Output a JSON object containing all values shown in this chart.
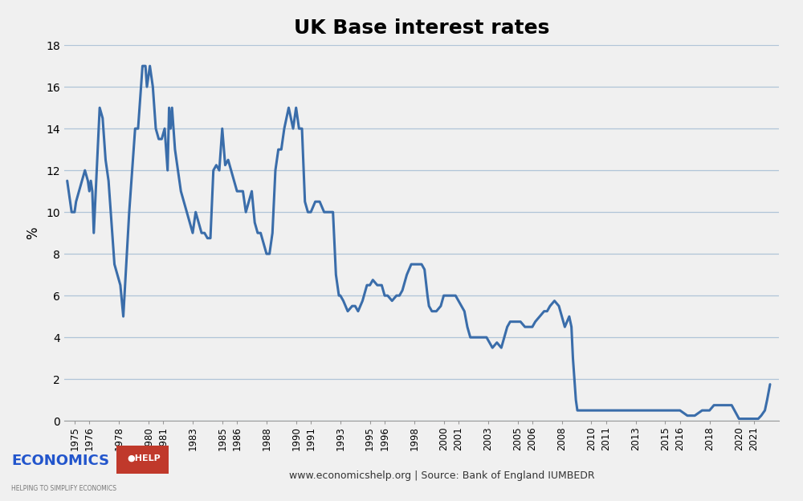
{
  "title": "UK Base interest rates",
  "ylabel": "%",
  "footer_text": "www.economicshelp.org | Source: Bank of England IUMBEDR",
  "line_color": "#3A6DAA",
  "line_width": 2.2,
  "background_color": "#f0f0f0",
  "plot_bg_color": "#f0f0f0",
  "grid_color": "#b0c4d8",
  "ylim": [
    0,
    18
  ],
  "yticks": [
    0,
    2,
    4,
    6,
    8,
    10,
    12,
    14,
    16,
    18
  ],
  "xlim": [
    1974.3,
    2022.7
  ],
  "xtick_positions": [
    1975,
    1976,
    1978,
    1980,
    1981,
    1983,
    1985,
    1986,
    1988,
    1990,
    1991,
    1993,
    1995,
    1996,
    1998,
    2000,
    2001,
    2003,
    2005,
    2006,
    2008,
    2010,
    2011,
    2013,
    2015,
    2016,
    2018,
    2020,
    2021
  ],
  "xtick_labels": [
    "1975",
    "1976",
    "1978",
    "1980",
    "1981",
    "1983",
    "1985",
    "1986",
    "1988",
    "1990",
    "1991",
    "1993",
    "1995",
    "1996",
    "1998",
    "2000",
    "2001",
    "2003",
    "2005",
    "2006",
    "2008",
    "2010",
    "2011",
    "2013",
    "2015",
    "2016",
    "2018",
    "2020",
    "2021"
  ],
  "data": [
    [
      1974.5,
      11.5
    ],
    [
      1974.8,
      10.0
    ],
    [
      1975.0,
      10.0
    ],
    [
      1975.1,
      10.5
    ],
    [
      1975.3,
      11.0
    ],
    [
      1975.5,
      11.5
    ],
    [
      1975.7,
      12.0
    ],
    [
      1975.9,
      11.5
    ],
    [
      1976.0,
      11.0
    ],
    [
      1976.1,
      11.5
    ],
    [
      1976.2,
      11.0
    ],
    [
      1976.3,
      9.0
    ],
    [
      1976.5,
      12.0
    ],
    [
      1976.7,
      15.0
    ],
    [
      1976.9,
      14.5
    ],
    [
      1977.1,
      12.5
    ],
    [
      1977.3,
      11.5
    ],
    [
      1977.5,
      9.5
    ],
    [
      1977.7,
      7.5
    ],
    [
      1977.9,
      7.0
    ],
    [
      1978.1,
      6.5
    ],
    [
      1978.3,
      5.0
    ],
    [
      1978.5,
      7.5
    ],
    [
      1978.7,
      10.0
    ],
    [
      1978.9,
      12.0
    ],
    [
      1979.1,
      14.0
    ],
    [
      1979.3,
      14.0
    ],
    [
      1979.6,
      17.0
    ],
    [
      1979.8,
      17.0
    ],
    [
      1979.9,
      16.0
    ],
    [
      1980.0,
      16.5
    ],
    [
      1980.1,
      17.0
    ],
    [
      1980.3,
      16.0
    ],
    [
      1980.5,
      14.0
    ],
    [
      1980.7,
      13.5
    ],
    [
      1980.9,
      13.5
    ],
    [
      1981.1,
      14.0
    ],
    [
      1981.3,
      12.0
    ],
    [
      1981.4,
      15.0
    ],
    [
      1981.5,
      14.0
    ],
    [
      1981.6,
      15.0
    ],
    [
      1981.8,
      13.0
    ],
    [
      1982.0,
      12.0
    ],
    [
      1982.2,
      11.0
    ],
    [
      1982.4,
      10.5
    ],
    [
      1982.6,
      10.0
    ],
    [
      1982.8,
      9.5
    ],
    [
      1983.0,
      9.0
    ],
    [
      1983.2,
      10.0
    ],
    [
      1983.4,
      9.5
    ],
    [
      1983.6,
      9.0
    ],
    [
      1983.8,
      9.0
    ],
    [
      1984.0,
      8.75
    ],
    [
      1984.2,
      8.75
    ],
    [
      1984.4,
      12.0
    ],
    [
      1984.6,
      12.25
    ],
    [
      1984.8,
      12.0
    ],
    [
      1985.0,
      14.0
    ],
    [
      1985.2,
      12.25
    ],
    [
      1985.4,
      12.5
    ],
    [
      1985.6,
      12.0
    ],
    [
      1985.8,
      11.5
    ],
    [
      1986.0,
      11.0
    ],
    [
      1986.2,
      11.0
    ],
    [
      1986.4,
      11.0
    ],
    [
      1986.6,
      10.0
    ],
    [
      1986.8,
      10.5
    ],
    [
      1987.0,
      11.0
    ],
    [
      1987.2,
      9.5
    ],
    [
      1987.4,
      9.0
    ],
    [
      1987.6,
      9.0
    ],
    [
      1987.8,
      8.5
    ],
    [
      1988.0,
      8.0
    ],
    [
      1988.2,
      8.0
    ],
    [
      1988.4,
      9.0
    ],
    [
      1988.6,
      12.0
    ],
    [
      1988.8,
      13.0
    ],
    [
      1989.0,
      13.0
    ],
    [
      1989.2,
      14.0
    ],
    [
      1989.5,
      15.0
    ],
    [
      1989.8,
      14.0
    ],
    [
      1990.0,
      15.0
    ],
    [
      1990.2,
      14.0
    ],
    [
      1990.4,
      14.0
    ],
    [
      1990.6,
      10.5
    ],
    [
      1990.8,
      10.0
    ],
    [
      1991.0,
      10.0
    ],
    [
      1991.3,
      10.5
    ],
    [
      1991.6,
      10.5
    ],
    [
      1991.9,
      10.0
    ],
    [
      1992.1,
      10.0
    ],
    [
      1992.3,
      10.0
    ],
    [
      1992.5,
      10.0
    ],
    [
      1992.7,
      7.0
    ],
    [
      1992.9,
      6.0
    ],
    [
      1993.0,
      6.0
    ],
    [
      1993.2,
      5.75
    ],
    [
      1993.5,
      5.25
    ],
    [
      1993.8,
      5.5
    ],
    [
      1994.0,
      5.5
    ],
    [
      1994.2,
      5.25
    ],
    [
      1994.5,
      5.75
    ],
    [
      1994.8,
      6.5
    ],
    [
      1995.0,
      6.5
    ],
    [
      1995.2,
      6.75
    ],
    [
      1995.5,
      6.5
    ],
    [
      1995.8,
      6.5
    ],
    [
      1996.0,
      6.0
    ],
    [
      1996.2,
      6.0
    ],
    [
      1996.5,
      5.75
    ],
    [
      1996.8,
      6.0
    ],
    [
      1997.0,
      6.0
    ],
    [
      1997.2,
      6.25
    ],
    [
      1997.5,
      7.0
    ],
    [
      1997.8,
      7.5
    ],
    [
      1998.0,
      7.5
    ],
    [
      1998.2,
      7.5
    ],
    [
      1998.5,
      7.5
    ],
    [
      1998.7,
      7.25
    ],
    [
      1998.9,
      6.0
    ],
    [
      1999.0,
      5.5
    ],
    [
      1999.2,
      5.25
    ],
    [
      1999.5,
      5.25
    ],
    [
      1999.8,
      5.5
    ],
    [
      2000.0,
      6.0
    ],
    [
      2000.2,
      6.0
    ],
    [
      2000.5,
      6.0
    ],
    [
      2000.8,
      6.0
    ],
    [
      2001.0,
      5.75
    ],
    [
      2001.2,
      5.5
    ],
    [
      2001.4,
      5.25
    ],
    [
      2001.6,
      4.5
    ],
    [
      2001.8,
      4.0
    ],
    [
      2002.0,
      4.0
    ],
    [
      2002.3,
      4.0
    ],
    [
      2002.6,
      4.0
    ],
    [
      2002.9,
      4.0
    ],
    [
      2003.1,
      3.75
    ],
    [
      2003.3,
      3.5
    ],
    [
      2003.6,
      3.75
    ],
    [
      2003.9,
      3.5
    ],
    [
      2004.1,
      4.0
    ],
    [
      2004.3,
      4.5
    ],
    [
      2004.5,
      4.75
    ],
    [
      2004.8,
      4.75
    ],
    [
      2005.0,
      4.75
    ],
    [
      2005.2,
      4.75
    ],
    [
      2005.5,
      4.5
    ],
    [
      2005.8,
      4.5
    ],
    [
      2006.0,
      4.5
    ],
    [
      2006.2,
      4.75
    ],
    [
      2006.5,
      5.0
    ],
    [
      2006.8,
      5.25
    ],
    [
      2007.0,
      5.25
    ],
    [
      2007.2,
      5.5
    ],
    [
      2007.5,
      5.75
    ],
    [
      2007.8,
      5.5
    ],
    [
      2008.0,
      5.0
    ],
    [
      2008.2,
      4.5
    ],
    [
      2008.5,
      5.0
    ],
    [
      2008.65,
      4.5
    ],
    [
      2008.75,
      3.0
    ],
    [
      2008.85,
      2.0
    ],
    [
      2008.95,
      1.0
    ],
    [
      2009.05,
      0.5
    ],
    [
      2009.3,
      0.5
    ],
    [
      2009.6,
      0.5
    ],
    [
      2010.0,
      0.5
    ],
    [
      2010.5,
      0.5
    ],
    [
      2011.0,
      0.5
    ],
    [
      2011.5,
      0.5
    ],
    [
      2012.0,
      0.5
    ],
    [
      2012.5,
      0.5
    ],
    [
      2013.0,
      0.5
    ],
    [
      2013.5,
      0.5
    ],
    [
      2014.0,
      0.5
    ],
    [
      2014.5,
      0.5
    ],
    [
      2015.0,
      0.5
    ],
    [
      2015.5,
      0.5
    ],
    [
      2016.0,
      0.5
    ],
    [
      2016.5,
      0.25
    ],
    [
      2017.0,
      0.25
    ],
    [
      2017.5,
      0.5
    ],
    [
      2018.0,
      0.5
    ],
    [
      2018.3,
      0.75
    ],
    [
      2018.6,
      0.75
    ],
    [
      2019.0,
      0.75
    ],
    [
      2019.5,
      0.75
    ],
    [
      2020.0,
      0.1
    ],
    [
      2020.2,
      0.1
    ],
    [
      2020.5,
      0.1
    ],
    [
      2021.0,
      0.1
    ],
    [
      2021.3,
      0.1
    ],
    [
      2021.5,
      0.25
    ],
    [
      2021.75,
      0.5
    ],
    [
      2021.9,
      1.0
    ],
    [
      2022.1,
      1.75
    ]
  ]
}
